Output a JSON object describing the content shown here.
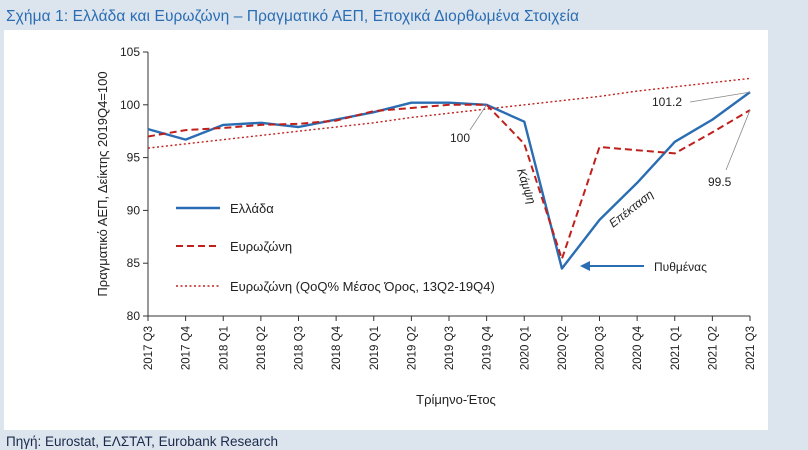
{
  "figure": {
    "title": "Σχήμα 1: Ελλάδα και Ευρωζώνη – Πραγματικό ΑΕΠ, Εποχικά Διορθωμένα Στοιχεία",
    "source": "Πηγή: Eurostat, ΕΛΣΤΑΤ, Eurobank Research"
  },
  "chart_data": {
    "type": "line",
    "xlabel": "Τρίμηνο-Έτος",
    "ylabel": "Πραγματικό ΑΕΠ, Δείκτης 2019Q4=100",
    "ylim": [
      80,
      105
    ],
    "yticks": [
      80,
      85,
      90,
      95,
      100,
      105
    ],
    "categories": [
      "2017 Q3",
      "2017 Q4",
      "2018 Q1",
      "2018 Q2",
      "2018 Q3",
      "2018 Q4",
      "2019 Q1",
      "2019 Q2",
      "2019 Q3",
      "2019 Q4",
      "2020 Q1",
      "2020 Q2",
      "2020 Q3",
      "2020 Q4",
      "2021 Q1",
      "2021 Q2",
      "2021 Q3"
    ],
    "grid": false,
    "legend_position": "left",
    "series": [
      {
        "name": "Ελλάδα",
        "color": "#2a6db3",
        "style": "solid",
        "values": [
          97.7,
          96.7,
          98.1,
          98.3,
          97.9,
          98.6,
          99.3,
          100.2,
          100.2,
          100.0,
          98.4,
          84.5,
          89.1,
          92.6,
          96.5,
          98.6,
          101.2
        ]
      },
      {
        "name": "Ευρωζώνη",
        "color": "#c0201c",
        "style": "dashed",
        "values": [
          97.0,
          97.6,
          97.8,
          98.1,
          98.2,
          98.5,
          99.4,
          99.7,
          100.0,
          100.0,
          96.3,
          85.4,
          96.0,
          95.7,
          95.4,
          97.4,
          99.5
        ]
      },
      {
        "name": "Ευρωζώνη (QoQ% Μέσος Όρος, 13Q2-19Q4)",
        "color": "#c0201c",
        "style": "dotted",
        "values": [
          95.9,
          96.3,
          96.7,
          97.1,
          97.5,
          97.9,
          98.3,
          98.8,
          99.2,
          99.6,
          100.0,
          100.4,
          100.8,
          101.3,
          101.7,
          102.1,
          102.5
        ]
      }
    ],
    "annotations": [
      {
        "text": "100"
      },
      {
        "text": "101.2"
      },
      {
        "text": "99.5"
      },
      {
        "text": "Κάμψη"
      },
      {
        "text": "Επέκταση"
      },
      {
        "text": "Πυθμένας"
      }
    ]
  }
}
